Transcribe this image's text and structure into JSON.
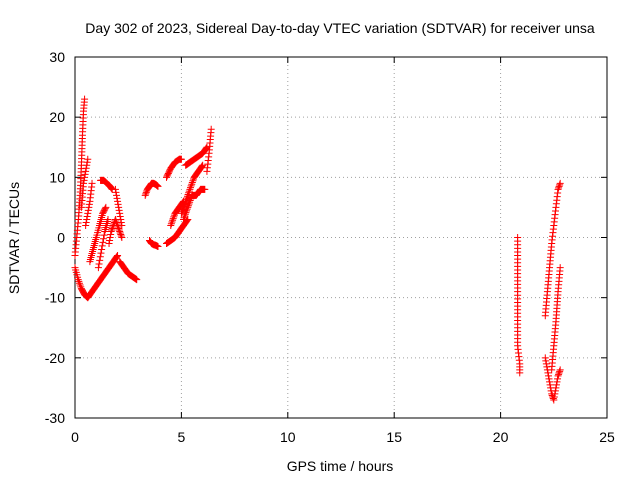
{
  "chart_data": {
    "type": "scatter",
    "title": "Day 302 of 2023, Sidereal Day-to-day VTEC variation (SDTVAR) for receiver unsa",
    "xlabel": "GPS time / hours",
    "ylabel": "SDTVAR / TECUs",
    "xlim": [
      0,
      25
    ],
    "ylim": [
      -30,
      30
    ],
    "x_ticks": [
      0,
      5,
      10,
      15,
      20,
      25
    ],
    "y_ticks": [
      -30,
      -20,
      -10,
      0,
      10,
      20,
      30
    ],
    "x_tick_labels": [
      "0",
      "5",
      "10",
      "15",
      "20",
      "25"
    ],
    "y_tick_labels": [
      "-30",
      "-20",
      "-10",
      "0",
      "10",
      "20",
      "30"
    ],
    "grid": true,
    "marker": "+",
    "marker_color": "#ff0000",
    "series": [
      {
        "name": "SDTVAR",
        "segments": [
          {
            "x": [
              0.0,
              0.15,
              0.3,
              0.45,
              0.6
            ],
            "y": [
              -5,
              -7,
              -8.5,
              -9.5,
              -10
            ]
          },
          {
            "x": [
              0.6,
              0.8,
              1.0,
              1.2,
              1.4,
              1.6,
              1.8,
              2.0
            ],
            "y": [
              -10,
              -9,
              -8,
              -7,
              -6,
              -5,
              -4,
              -3
            ]
          },
          {
            "x": [
              0.0,
              0.08,
              0.16,
              0.24,
              0.3,
              0.35,
              0.4,
              0.45
            ],
            "y": [
              -3,
              0,
              3,
              7,
              12,
              17,
              21,
              23
            ]
          },
          {
            "x": [
              0.3,
              0.4,
              0.5,
              0.6
            ],
            "y": [
              5,
              9,
              11,
              13
            ]
          },
          {
            "x": [
              0.5,
              0.6,
              0.7,
              0.8
            ],
            "y": [
              2,
              4,
              6,
              9
            ]
          },
          {
            "x": [
              0.7,
              0.85,
              1.0,
              1.15,
              1.3,
              1.45
            ],
            "y": [
              -4,
              -2,
              0,
              2,
              4,
              5
            ]
          },
          {
            "x": [
              1.1,
              1.25,
              1.4,
              1.55
            ],
            "y": [
              -5,
              -2,
              1,
              3
            ]
          },
          {
            "x": [
              1.2,
              1.35,
              1.5,
              1.65,
              1.75
            ],
            "y": [
              9.5,
              9.5,
              9,
              8.5,
              8
            ]
          },
          {
            "x": [
              1.6,
              1.7,
              1.8,
              1.9,
              2.0,
              2.1,
              2.2
            ],
            "y": [
              -1,
              1,
              2,
              3,
              2,
              1,
              0
            ]
          },
          {
            "x": [
              1.9,
              2.0,
              2.1,
              2.2
            ],
            "y": [
              8,
              6,
              4,
              2
            ]
          },
          {
            "x": [
              2.1,
              2.3,
              2.5,
              2.7,
              2.9
            ],
            "y": [
              -4,
              -5,
              -6,
              -6.5,
              -7
            ]
          },
          {
            "x": [
              3.3,
              3.4,
              3.5,
              3.6,
              3.7,
              3.8,
              3.9
            ],
            "y": [
              7,
              8,
              8.5,
              9,
              9,
              8.8,
              8.5
            ]
          },
          {
            "x": [
              3.5,
              3.6,
              3.7,
              3.8,
              3.9
            ],
            "y": [
              -0.5,
              -1,
              -1.2,
              -1.3,
              -1.5
            ]
          },
          {
            "x": [
              4.3,
              4.5,
              4.7,
              4.9,
              5.1,
              5.3
            ],
            "y": [
              -1,
              -0.5,
              0,
              1,
              2,
              3
            ]
          },
          {
            "x": [
              4.5,
              4.7,
              4.9,
              5.1
            ],
            "y": [
              2,
              4,
              5,
              6
            ]
          },
          {
            "x": [
              4.3,
              4.5,
              4.7,
              4.9,
              5.0
            ],
            "y": [
              10,
              11.5,
              12.5,
              13,
              13
            ]
          },
          {
            "x": [
              5.2,
              5.4,
              5.6,
              5.8,
              6.0,
              6.2
            ],
            "y": [
              12,
              12.5,
              13,
              13.5,
              14,
              15
            ]
          },
          {
            "x": [
              5.0,
              5.2,
              5.4,
              5.6,
              5.8,
              6.0
            ],
            "y": [
              4,
              6,
              8,
              10,
              11,
              12
            ]
          },
          {
            "x": [
              5.1,
              5.3,
              5.5,
              5.7,
              5.9,
              6.1
            ],
            "y": [
              3,
              5,
              7,
              7,
              8,
              8
            ]
          },
          {
            "x": [
              6.2,
              6.3,
              6.4
            ],
            "y": [
              11,
              14,
              18
            ]
          },
          {
            "x": [
              20.8,
              20.8,
              20.8,
              20.9,
              20.9
            ],
            "y": [
              0,
              -15,
              -18,
              -21,
              -22.5
            ]
          },
          {
            "x": [
              22.1,
              22.2,
              22.3,
              22.4,
              22.5,
              22.6,
              22.7,
              22.8
            ],
            "y": [
              -20,
              -22,
              -24,
              -26,
              -27,
              -25,
              -23,
              -22
            ]
          },
          {
            "x": [
              22.1,
              22.2,
              22.3,
              22.4,
              22.5,
              22.6,
              22.7,
              22.8
            ],
            "y": [
              -13,
              -9,
              -5,
              -1,
              2,
              5,
              8,
              9
            ]
          },
          {
            "x": [
              22.4,
              22.5,
              22.6,
              22.7,
              22.8
            ],
            "y": [
              -22,
              -18,
              -14,
              -9,
              -5
            ]
          }
        ]
      }
    ]
  }
}
